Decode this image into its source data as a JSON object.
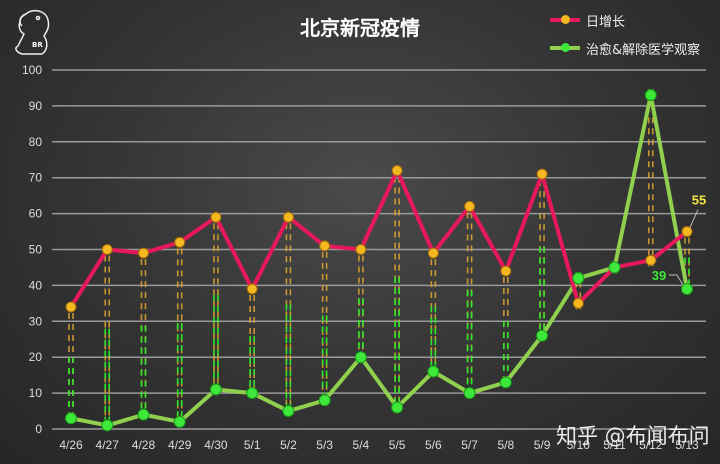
{
  "title": "北京新冠疫情",
  "watermark": "知乎 @布闻布问",
  "logo_icon": "parrot-logo-icon",
  "legend": [
    {
      "label": "日增长",
      "line_color": "#e8195a",
      "dot_color": "#f5b820"
    },
    {
      "label": "治愈&解除医学观察",
      "line_color": "#8fd14f",
      "dot_color": "#3ee83a"
    }
  ],
  "chart_data": {
    "type": "line",
    "title": "北京新冠疫情",
    "xlabel": "",
    "ylabel": "",
    "ylim": [
      0,
      100
    ],
    "yticks": [
      0,
      10,
      20,
      30,
      40,
      50,
      60,
      70,
      80,
      90,
      100
    ],
    "grid": true,
    "legend_position": "top-right",
    "categories": [
      "4/26",
      "4/27",
      "4/28",
      "4/29",
      "4/30",
      "5/1",
      "5/2",
      "5/3",
      "5/4",
      "5/5",
      "5/6",
      "5/7",
      "5/8",
      "5/9",
      "5/10",
      "5/11",
      "5/12",
      "5/13"
    ],
    "series": [
      {
        "name": "日增长",
        "values": [
          34,
          50,
          49,
          52,
          59,
          39,
          59,
          51,
          50,
          72,
          49,
          62,
          44,
          71,
          35,
          45,
          47,
          55
        ]
      },
      {
        "name": "治愈&解除医学观察",
        "values": [
          3,
          1,
          4,
          2,
          11,
          10,
          5,
          8,
          20,
          6,
          16,
          10,
          13,
          26,
          42,
          45,
          93,
          39
        ]
      }
    ],
    "annotations": [
      {
        "series": "日增长",
        "x": "5/13",
        "text": "55",
        "color": "#f5e642"
      },
      {
        "series": "治愈&解除医学观察",
        "x": "5/13",
        "text": "39",
        "color": "#3ee83a"
      }
    ]
  }
}
